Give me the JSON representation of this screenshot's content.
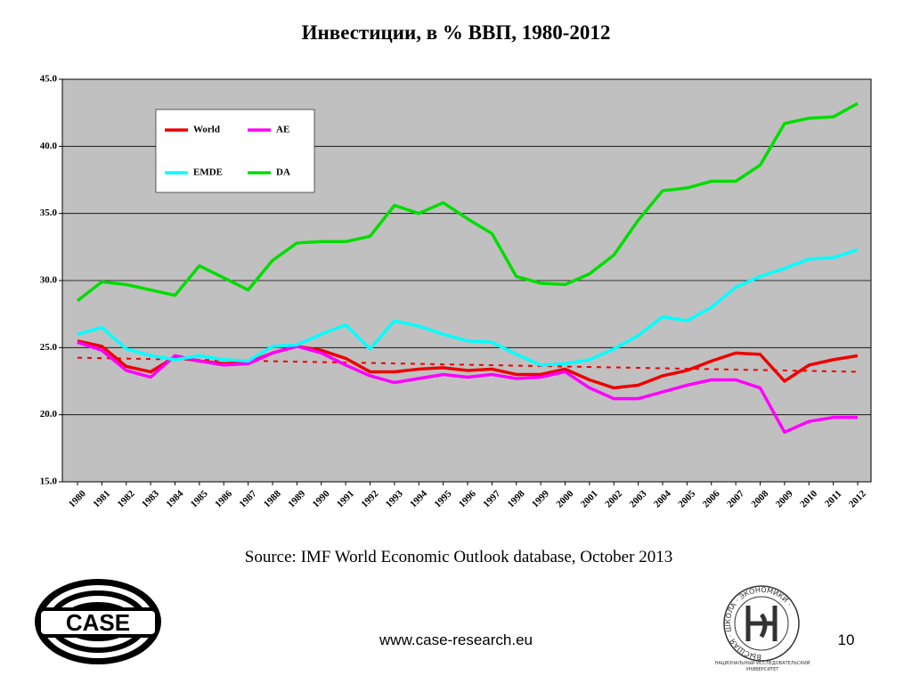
{
  "title": "Инвестиции, в % ВВП, 1980-2012",
  "chart_data": {
    "type": "line",
    "categories": [
      "1980",
      "1981",
      "1982",
      "1983",
      "1984",
      "1985",
      "1986",
      "1987",
      "1988",
      "1989",
      "1990",
      "1991",
      "1992",
      "1993",
      "1994",
      "1995",
      "1996",
      "1997",
      "1998",
      "1999",
      "2000",
      "2001",
      "2002",
      "2003",
      "2004",
      "2005",
      "2006",
      "2007",
      "2008",
      "2009",
      "2010",
      "2011",
      "2012"
    ],
    "series": [
      {
        "name": "World",
        "color": "#ee0000",
        "values": [
          25.5,
          25.1,
          23.6,
          23.2,
          24.3,
          24.0,
          23.8,
          23.9,
          24.6,
          25.1,
          24.8,
          24.2,
          23.2,
          23.2,
          23.4,
          23.5,
          23.3,
          23.4,
          23.0,
          23.0,
          23.4,
          22.6,
          22.0,
          22.2,
          22.9,
          23.3,
          24.0,
          24.6,
          24.5,
          22.5,
          23.7,
          24.1,
          24.4
        ]
      },
      {
        "name": "AE",
        "color": "#ff00ff",
        "values": [
          25.4,
          24.8,
          23.3,
          22.8,
          24.4,
          24.0,
          23.7,
          23.8,
          24.6,
          25.1,
          24.6,
          23.7,
          22.9,
          22.4,
          22.7,
          23.0,
          22.8,
          23.0,
          22.7,
          22.8,
          23.2,
          22.0,
          21.2,
          21.2,
          21.7,
          22.2,
          22.6,
          22.6,
          22.0,
          18.7,
          19.5,
          19.8,
          19.8
        ]
      },
      {
        "name": "EMDE",
        "color": "#00ffff",
        "values": [
          26.0,
          26.5,
          24.9,
          24.4,
          24.1,
          24.4,
          24.1,
          24.0,
          25.1,
          25.2,
          26.0,
          26.7,
          24.9,
          27.0,
          26.6,
          26.0,
          25.5,
          25.4,
          24.5,
          23.7,
          23.8,
          24.1,
          24.9,
          25.9,
          27.3,
          27.0,
          28.0,
          29.5,
          30.3,
          30.9,
          31.6,
          31.7,
          32.3
        ]
      },
      {
        "name": "DA",
        "color": "#00dd00",
        "values": [
          28.5,
          29.9,
          29.7,
          29.3,
          28.9,
          31.1,
          30.2,
          29.3,
          31.5,
          32.8,
          32.9,
          32.9,
          33.3,
          35.6,
          35.0,
          35.8,
          34.6,
          33.5,
          30.3,
          29.8,
          29.7,
          30.5,
          31.9,
          34.5,
          36.7,
          36.9,
          37.4,
          37.4,
          38.6,
          41.7,
          42.1,
          42.2,
          43.2
        ]
      }
    ],
    "trend": {
      "color": "#ee0000",
      "values": [
        24.25,
        23.2
      ]
    },
    "ylim": [
      15,
      45
    ],
    "yticks": [
      {
        "value": 15,
        "label": "15.0"
      },
      {
        "value": 20,
        "label": "20.0"
      },
      {
        "value": 25,
        "label": "25.0"
      },
      {
        "value": 30,
        "label": "30.0"
      },
      {
        "value": 35,
        "label": "35.0"
      },
      {
        "value": 40,
        "label": "40.0"
      },
      {
        "value": 45,
        "label": "45.0"
      }
    ],
    "grid": true,
    "legend": "upper-left",
    "background": "#c0c0c0"
  },
  "source": "Source: IMF World Economic Outlook database, October 2013",
  "url": "www.case-research.eu",
  "page_number": "10",
  "case_logo": "CASE",
  "hse_logo": {
    "ring_text": "ВЫСШАЯ · ШКОЛА · ЭКОНОМИКИ ·",
    "caption_1": "НАЦИОНАЛЬНЫЙ ИССЛЕДОВАТЕЛЬСКИЙ",
    "caption_2": "УНИВЕРСИТЕТ"
  }
}
